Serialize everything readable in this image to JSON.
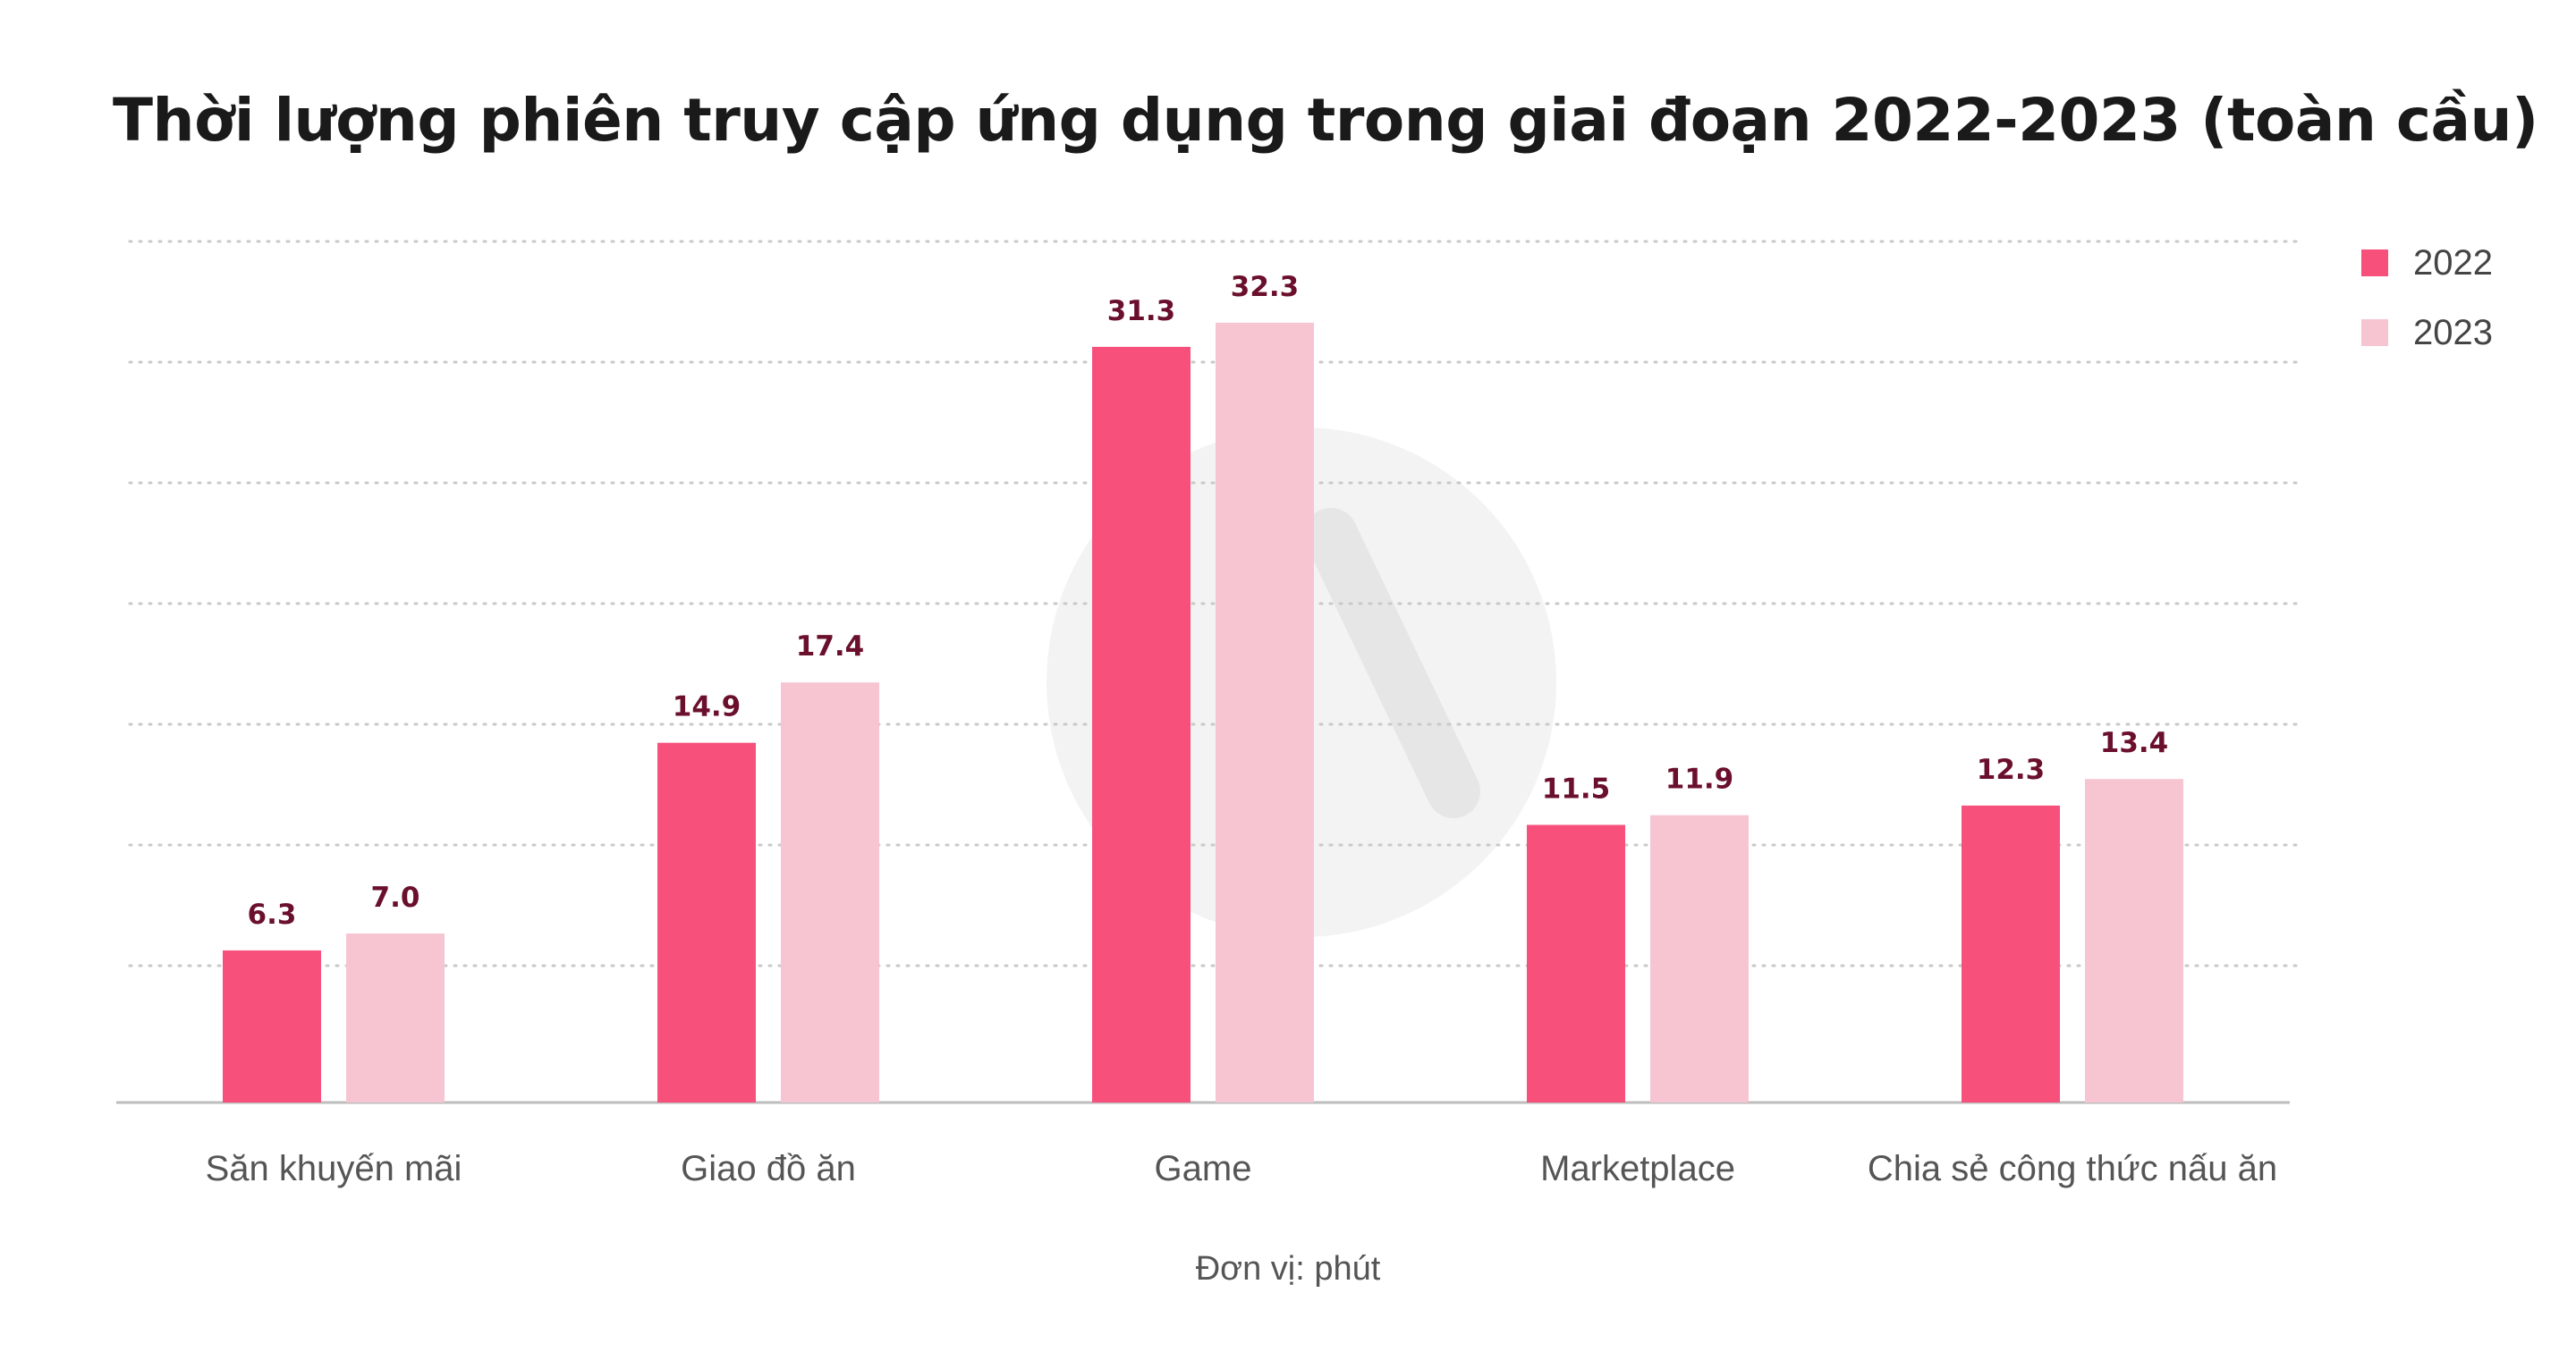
{
  "title": "Thời lượng phiên truy cập ứng dụng trong giai đoạn 2022-2023 (toàn cầu)",
  "unit_note": "Đơn vị: phút",
  "colors": {
    "series_2022": "#f7507b",
    "series_2023": "#f7c4d2",
    "grid": "#c9c9c9",
    "axis": "#bdbdbd",
    "value_label": "#6a0f2c"
  },
  "chart_data": {
    "type": "bar",
    "title": "Thời lượng phiên truy cập ứng dụng trong giai đoạn 2022-2023 (toàn cầu)",
    "xlabel": "",
    "ylabel": "",
    "categories": [
      "Săn khuyến mãi",
      "Giao đồ ăn",
      "Game",
      "Marketplace",
      "Chia sẻ công thức nấu ăn"
    ],
    "series": [
      {
        "name": "2022",
        "values": [
          6.3,
          14.9,
          31.3,
          11.5,
          12.3
        ]
      },
      {
        "name": "2023",
        "values": [
          7.0,
          17.4,
          32.3,
          11.9,
          13.4
        ]
      }
    ],
    "value_labels": [
      [
        "6.3",
        "14.9",
        "31.3",
        "11.5",
        "12.3"
      ],
      [
        "7.0",
        "17.4",
        "32.3",
        "11.9",
        "13.4"
      ]
    ],
    "ylim": [
      0,
      35
    ],
    "grid": true,
    "legend": "top-right"
  }
}
